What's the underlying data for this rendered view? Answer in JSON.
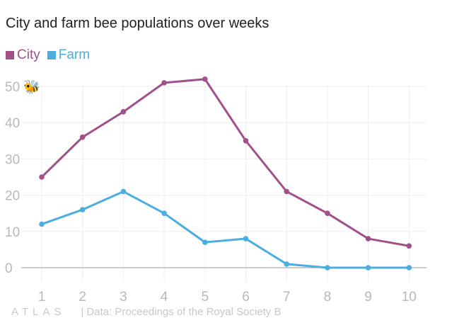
{
  "title": "City and farm bee populations over weeks",
  "legend": [
    {
      "name": "City",
      "color": "#a0518a"
    },
    {
      "name": "Farm",
      "color": "#4aaee0"
    }
  ],
  "footer": {
    "logo": "ATLAS",
    "separator": "|",
    "source": "Data: Proceedings of the Royal Society B"
  },
  "chart_data": {
    "type": "line",
    "title": "City and farm bee populations over weeks",
    "xlabel": "",
    "ylabel": "",
    "categories": [
      1,
      2,
      3,
      4,
      5,
      6,
      7,
      8,
      9,
      10
    ],
    "ylim": [
      0,
      50
    ],
    "yticks": [
      0,
      10,
      20,
      30,
      40,
      50
    ],
    "y_top_label_suffix": "🐝",
    "grid": true,
    "legend_position": "top-left",
    "series": [
      {
        "name": "City",
        "color": "#a0518a",
        "values": [
          25,
          36,
          43,
          51,
          52,
          35,
          21,
          15,
          8,
          6
        ]
      },
      {
        "name": "Farm",
        "color": "#4aaee0",
        "values": [
          12,
          16,
          21,
          15,
          7,
          8,
          1,
          0,
          0,
          0
        ]
      }
    ]
  }
}
